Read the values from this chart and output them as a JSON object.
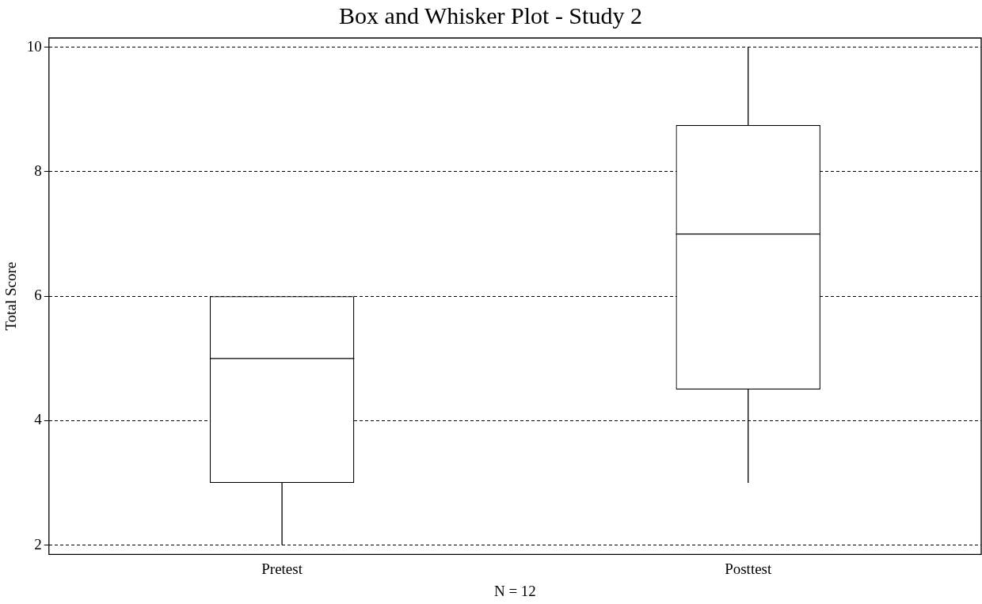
{
  "chart_data": {
    "type": "box",
    "title": "Box and Whisker Plot - Study 2",
    "xlabel": "N = 12",
    "ylabel": "Total Score",
    "categories": [
      "Pretest",
      "Posttest"
    ],
    "color": "#000000",
    "boxes": [
      {
        "low": 2,
        "q1": 3,
        "median": 5,
        "q3": 6,
        "high": 6
      },
      {
        "low": 3,
        "q1": 4.5,
        "median": 7,
        "q3": 8.75,
        "high": 10
      }
    ],
    "ylim": [
      1.85,
      10.15
    ],
    "yticks": [
      2,
      4,
      6,
      8,
      10
    ],
    "grid": "y"
  }
}
